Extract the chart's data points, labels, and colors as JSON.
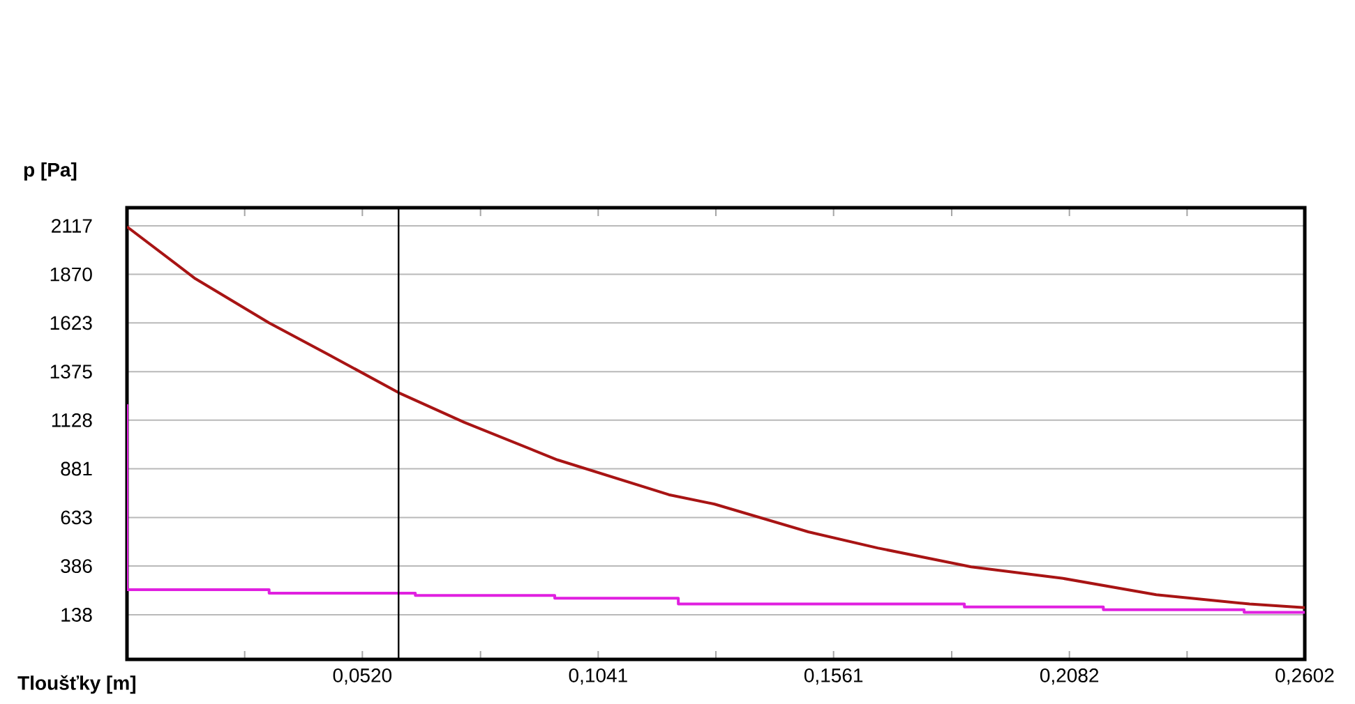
{
  "chart_data": {
    "type": "line",
    "xlabel": "Tloušťky [m]",
    "ylabel": "p [Pa]",
    "xlim": [
      0,
      0.2602
    ],
    "ylim": [
      -89,
      2209
    ],
    "xticks": [
      {
        "value": 0.026,
        "label": null
      },
      {
        "value": 0.052,
        "label": "0,0520"
      },
      {
        "value": 0.0781,
        "label": null
      },
      {
        "value": 0.1041,
        "label": "0,1041"
      },
      {
        "value": 0.1301,
        "label": null
      },
      {
        "value": 0.1561,
        "label": "0,1561"
      },
      {
        "value": 0.1822,
        "label": null
      },
      {
        "value": 0.2082,
        "label": "0,2082"
      },
      {
        "value": 0.2342,
        "label": null
      },
      {
        "value": 0.2602,
        "label": "0,2602"
      }
    ],
    "yticks": [
      138,
      386,
      633,
      881,
      1128,
      1375,
      1623,
      1870,
      2117
    ],
    "grid": "y",
    "marker": "none",
    "line_style": "solid",
    "ref_lines": [
      {
        "axis": "x",
        "value": 0.06,
        "color": "#000000"
      }
    ],
    "series": [
      {
        "color": "#a81414",
        "x": [
          0,
          0.0151,
          0.0314,
          0.0458,
          0.06,
          0.0745,
          0.0951,
          0.1197,
          0.1298,
          0.1505,
          0.1658,
          0.1865,
          0.2068,
          0.2274,
          0.248,
          0.2602
        ],
        "values": [
          2112,
          1848,
          1623,
          1446,
          1268,
          1117,
          926,
          749,
          701,
          560,
          478,
          382,
          323,
          240,
          193,
          174
        ]
      },
      {
        "color": "#e020e0",
        "x": [
          0,
          0,
          0.0314,
          0.0314,
          0.0637,
          0.0637,
          0.0945,
          0.0945,
          0.1218,
          0.1218,
          0.185,
          0.185,
          0.2157,
          0.2157,
          0.2468,
          0.2468,
          0.2602
        ],
        "values": [
          1209,
          266,
          266,
          248,
          248,
          236,
          236,
          222,
          222,
          193,
          193,
          178,
          178,
          164,
          164,
          150,
          150
        ]
      }
    ]
  }
}
